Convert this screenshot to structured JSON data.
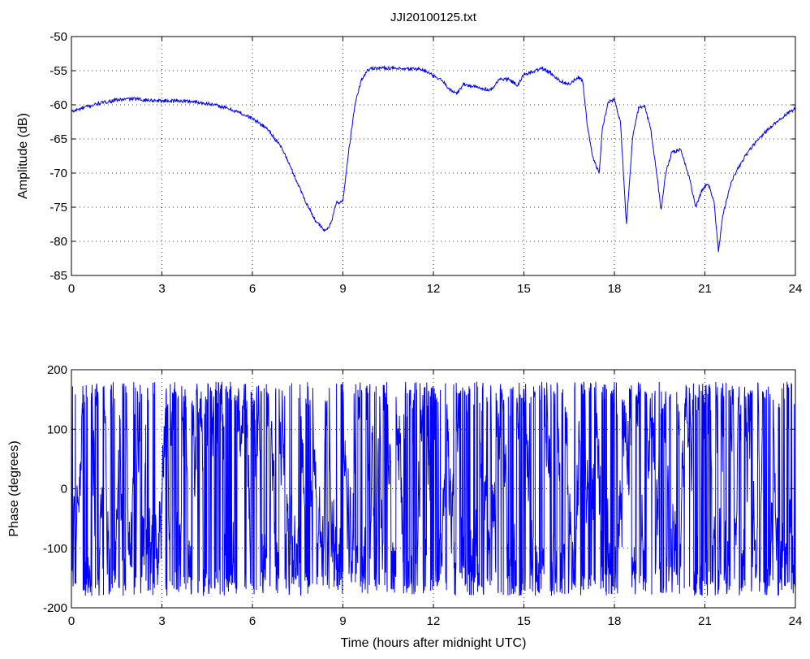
{
  "figure": {
    "title": "JJI20100125.txt"
  },
  "colors": {
    "line": "#0000ff",
    "axes": "#000000",
    "grid": "#000000",
    "background": "#ffffff"
  },
  "chart_data": [
    {
      "type": "line",
      "title": "JJI20100125.txt",
      "xlabel": "",
      "ylabel": "Amplitude (dB)",
      "xlim": [
        0,
        24
      ],
      "ylim": [
        -85,
        -50
      ],
      "xticks": [
        0,
        3,
        6,
        9,
        12,
        15,
        18,
        21,
        24
      ],
      "yticks": [
        -85,
        -80,
        -75,
        -70,
        -65,
        -60,
        -55,
        -50
      ],
      "grid": true,
      "series": [
        {
          "x": [
            0,
            0.5,
            1,
            1.5,
            2,
            2.5,
            3,
            3.5,
            4,
            4.5,
            5,
            5.5,
            6,
            6.5,
            7,
            7.5,
            7.8,
            8.1,
            8.4,
            8.6,
            8.8,
            8.9,
            9.0,
            9.2,
            9.4,
            9.6,
            9.8,
            10,
            10.5,
            11,
            11.5,
            11.8,
            12,
            12.3,
            12.6,
            12.8,
            13.0,
            13.5,
            13.9,
            14.2,
            14.5,
            14.8,
            15.0,
            15.3,
            15.6,
            15.9,
            16.2,
            16.5,
            16.8,
            16.95,
            17.1,
            17.3,
            17.5,
            17.6,
            17.8,
            18.0,
            18.2,
            18.4,
            18.6,
            18.8,
            19.0,
            19.2,
            19.4,
            19.55,
            19.7,
            19.9,
            20.2,
            20.5,
            20.7,
            20.9,
            21.1,
            21.3,
            21.45,
            21.6,
            21.9,
            22.2,
            22.5,
            23.0,
            23.5,
            24.0
          ],
          "y": [
            -61,
            -60.3,
            -59.7,
            -59.3,
            -59.1,
            -59.3,
            -59.4,
            -59.4,
            -59.5,
            -59.8,
            -60.3,
            -61.0,
            -62.0,
            -63.5,
            -66.5,
            -71.5,
            -74.5,
            -77.0,
            -78.5,
            -77.5,
            -74.0,
            -74.5,
            -74.0,
            -66.5,
            -60.0,
            -56.5,
            -55.0,
            -54.6,
            -54.6,
            -54.8,
            -54.7,
            -55.2,
            -55.8,
            -56.5,
            -58.0,
            -58.2,
            -57.0,
            -57.5,
            -57.8,
            -56.2,
            -56.3,
            -57.2,
            -55.5,
            -55.2,
            -54.6,
            -55.4,
            -56.5,
            -57.0,
            -56.0,
            -56.5,
            -63.0,
            -68.0,
            -70.0,
            -63.5,
            -59.5,
            -59.2,
            -62.5,
            -77.5,
            -65.0,
            -60.5,
            -60.2,
            -63.5,
            -70.0,
            -75.5,
            -70.0,
            -67.0,
            -66.5,
            -71.0,
            -75.0,
            -72.5,
            -71.5,
            -74.0,
            -81.5,
            -76.0,
            -71.0,
            -68.5,
            -66.5,
            -64.0,
            -62.0,
            -60.5
          ]
        }
      ]
    },
    {
      "type": "line",
      "title": "",
      "xlabel": "Time (hours after midnight UTC)",
      "ylabel": "Phase (degrees)",
      "xlim": [
        0,
        24
      ],
      "ylim": [
        -200,
        200
      ],
      "xticks": [
        0,
        3,
        6,
        9,
        12,
        15,
        18,
        21,
        24
      ],
      "yticks": [
        -200,
        -100,
        0,
        100,
        200
      ],
      "grid": true,
      "style": "noise",
      "series": [
        {
          "x": [
            0,
            24
          ],
          "y": [
            -180,
            180
          ]
        }
      ]
    }
  ],
  "tick_labels": {
    "top_y": [
      "-85",
      "-80",
      "-75",
      "-70",
      "-65",
      "-60",
      "-55",
      "-50"
    ],
    "bottom_y": [
      "-200",
      "-100",
      "0",
      "100",
      "200"
    ],
    "x": [
      "0",
      "3",
      "6",
      "9",
      "12",
      "15",
      "18",
      "21",
      "24"
    ]
  }
}
